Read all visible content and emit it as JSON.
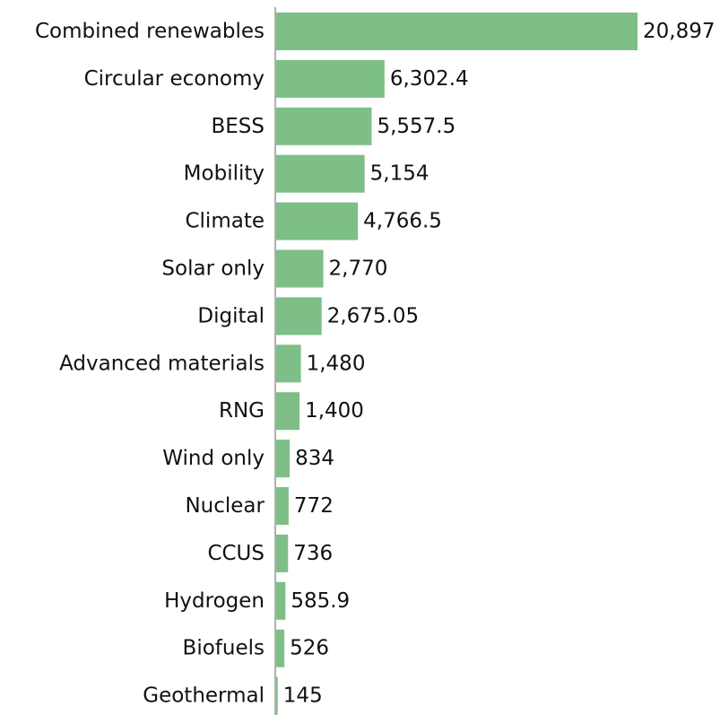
{
  "colors": {
    "bar": "#7dbf86",
    "axis": "#b0b0b0",
    "text": "#111111"
  },
  "chart_data": {
    "type": "bar",
    "orientation": "horizontal",
    "categories": [
      "Combined renewables",
      "Circular economy",
      "BESS",
      "Mobility",
      "Climate",
      "Solar only",
      "Digital",
      "Advanced materials",
      "RNG",
      "Wind only",
      "Nuclear",
      "CCUS",
      "Hydrogen",
      "Biofuels",
      "Geothermal"
    ],
    "values": [
      20897,
      6302.4,
      5557.5,
      5154,
      4766.5,
      2770,
      2675.05,
      1480,
      1400,
      834,
      772,
      736,
      585.9,
      526,
      145
    ],
    "value_labels": [
      "20,897",
      "6,302.4",
      "5,557.5",
      "5,154",
      "4,766.5",
      "2,770",
      "2,675.05",
      "1,480",
      "1,400",
      "834",
      "772",
      "736",
      "585.9",
      "526",
      "145"
    ],
    "title": "",
    "xlabel": "",
    "ylabel": "",
    "xlim": [
      0,
      20897
    ],
    "grid": false,
    "legend": "none"
  }
}
